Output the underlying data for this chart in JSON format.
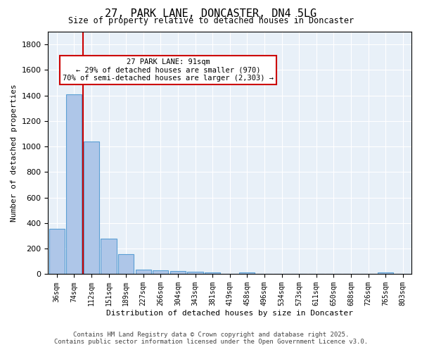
{
  "title_line1": "27, PARK LANE, DONCASTER, DN4 5LG",
  "title_line2": "Size of property relative to detached houses in Doncaster",
  "xlabel": "Distribution of detached houses by size in Doncaster",
  "ylabel": "Number of detached properties",
  "categories": [
    "36sqm",
    "74sqm",
    "112sqm",
    "151sqm",
    "189sqm",
    "227sqm",
    "266sqm",
    "304sqm",
    "343sqm",
    "381sqm",
    "419sqm",
    "458sqm",
    "496sqm",
    "534sqm",
    "573sqm",
    "611sqm",
    "650sqm",
    "688sqm",
    "726sqm",
    "765sqm",
    "803sqm"
  ],
  "values": [
    355,
    1410,
    1040,
    280,
    155,
    38,
    28,
    22,
    20,
    12,
    0,
    12,
    0,
    0,
    0,
    0,
    0,
    0,
    0,
    15,
    0
  ],
  "bar_color": "#aec6e8",
  "bar_edge_color": "#5a9fd4",
  "red_line_x": 1.5,
  "property_size": 91,
  "pct_smaller": 29,
  "n_smaller": 970,
  "pct_semi_larger": 70,
  "n_semi_larger": 2303,
  "annotation_box_color": "#cc0000",
  "ylim": [
    0,
    1900
  ],
  "yticks": [
    0,
    200,
    400,
    600,
    800,
    1000,
    1200,
    1400,
    1600,
    1800
  ],
  "background_color": "#e8f0f8",
  "footer_line1": "Contains HM Land Registry data © Crown copyright and database right 2025.",
  "footer_line2": "Contains public sector information licensed under the Open Government Licence v3.0."
}
